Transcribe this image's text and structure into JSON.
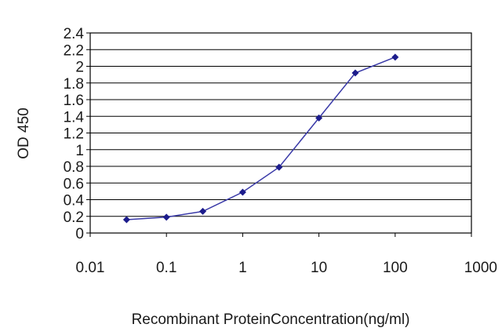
{
  "chart_data": {
    "type": "line",
    "title": "",
    "xlabel": "Recombinant ProteinConcentration(ng/ml)",
    "ylabel": "OD 450",
    "x_scale": "log",
    "xlim": [
      0.01,
      1000
    ],
    "ylim": [
      0,
      2.4
    ],
    "x_ticks": [
      "0.01",
      "0.1",
      "1",
      "10",
      "100",
      "1000"
    ],
    "y_ticks": [
      "0",
      "0.2",
      "0.4",
      "0.6",
      "0.8",
      "1",
      "1.2",
      "1.4",
      "1.6",
      "1.8",
      "2",
      "2.2",
      "2.4"
    ],
    "grid": "horizontal",
    "legend": "none",
    "line_color": "#3a3aa8",
    "marker_color": "#1c1c8c",
    "series": [
      {
        "x": [
          0.03,
          0.1,
          0.3,
          1,
          3,
          10,
          30,
          100
        ],
        "y": [
          0.16,
          0.19,
          0.26,
          0.49,
          0.79,
          1.38,
          1.92,
          2.11
        ]
      }
    ]
  }
}
